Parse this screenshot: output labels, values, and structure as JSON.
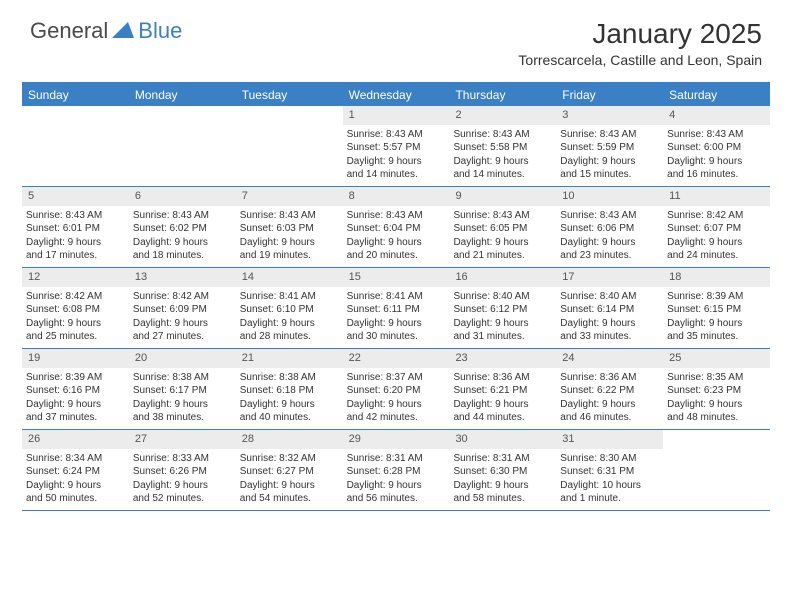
{
  "brand": {
    "text1": "General",
    "text2": "Blue"
  },
  "title": "January 2025",
  "location": "Torrescarcela, Castille and Leon, Spain",
  "colors": {
    "accent": "#3b7fc4",
    "dayhead_text": "#ffffff",
    "daynum_bg": "#ececec",
    "daynum_text": "#555555",
    "body_text": "#333333",
    "background": "#ffffff"
  },
  "day_headers": [
    "Sunday",
    "Monday",
    "Tuesday",
    "Wednesday",
    "Thursday",
    "Friday",
    "Saturday"
  ],
  "weeks": [
    [
      {
        "empty": true
      },
      {
        "empty": true
      },
      {
        "empty": true
      },
      {
        "day": "1",
        "sunrise": "Sunrise: 8:43 AM",
        "sunset": "Sunset: 5:57 PM",
        "dl1": "Daylight: 9 hours",
        "dl2": "and 14 minutes."
      },
      {
        "day": "2",
        "sunrise": "Sunrise: 8:43 AM",
        "sunset": "Sunset: 5:58 PM",
        "dl1": "Daylight: 9 hours",
        "dl2": "and 14 minutes."
      },
      {
        "day": "3",
        "sunrise": "Sunrise: 8:43 AM",
        "sunset": "Sunset: 5:59 PM",
        "dl1": "Daylight: 9 hours",
        "dl2": "and 15 minutes."
      },
      {
        "day": "4",
        "sunrise": "Sunrise: 8:43 AM",
        "sunset": "Sunset: 6:00 PM",
        "dl1": "Daylight: 9 hours",
        "dl2": "and 16 minutes."
      }
    ],
    [
      {
        "day": "5",
        "sunrise": "Sunrise: 8:43 AM",
        "sunset": "Sunset: 6:01 PM",
        "dl1": "Daylight: 9 hours",
        "dl2": "and 17 minutes."
      },
      {
        "day": "6",
        "sunrise": "Sunrise: 8:43 AM",
        "sunset": "Sunset: 6:02 PM",
        "dl1": "Daylight: 9 hours",
        "dl2": "and 18 minutes."
      },
      {
        "day": "7",
        "sunrise": "Sunrise: 8:43 AM",
        "sunset": "Sunset: 6:03 PM",
        "dl1": "Daylight: 9 hours",
        "dl2": "and 19 minutes."
      },
      {
        "day": "8",
        "sunrise": "Sunrise: 8:43 AM",
        "sunset": "Sunset: 6:04 PM",
        "dl1": "Daylight: 9 hours",
        "dl2": "and 20 minutes."
      },
      {
        "day": "9",
        "sunrise": "Sunrise: 8:43 AM",
        "sunset": "Sunset: 6:05 PM",
        "dl1": "Daylight: 9 hours",
        "dl2": "and 21 minutes."
      },
      {
        "day": "10",
        "sunrise": "Sunrise: 8:43 AM",
        "sunset": "Sunset: 6:06 PM",
        "dl1": "Daylight: 9 hours",
        "dl2": "and 23 minutes."
      },
      {
        "day": "11",
        "sunrise": "Sunrise: 8:42 AM",
        "sunset": "Sunset: 6:07 PM",
        "dl1": "Daylight: 9 hours",
        "dl2": "and 24 minutes."
      }
    ],
    [
      {
        "day": "12",
        "sunrise": "Sunrise: 8:42 AM",
        "sunset": "Sunset: 6:08 PM",
        "dl1": "Daylight: 9 hours",
        "dl2": "and 25 minutes."
      },
      {
        "day": "13",
        "sunrise": "Sunrise: 8:42 AM",
        "sunset": "Sunset: 6:09 PM",
        "dl1": "Daylight: 9 hours",
        "dl2": "and 27 minutes."
      },
      {
        "day": "14",
        "sunrise": "Sunrise: 8:41 AM",
        "sunset": "Sunset: 6:10 PM",
        "dl1": "Daylight: 9 hours",
        "dl2": "and 28 minutes."
      },
      {
        "day": "15",
        "sunrise": "Sunrise: 8:41 AM",
        "sunset": "Sunset: 6:11 PM",
        "dl1": "Daylight: 9 hours",
        "dl2": "and 30 minutes."
      },
      {
        "day": "16",
        "sunrise": "Sunrise: 8:40 AM",
        "sunset": "Sunset: 6:12 PM",
        "dl1": "Daylight: 9 hours",
        "dl2": "and 31 minutes."
      },
      {
        "day": "17",
        "sunrise": "Sunrise: 8:40 AM",
        "sunset": "Sunset: 6:14 PM",
        "dl1": "Daylight: 9 hours",
        "dl2": "and 33 minutes."
      },
      {
        "day": "18",
        "sunrise": "Sunrise: 8:39 AM",
        "sunset": "Sunset: 6:15 PM",
        "dl1": "Daylight: 9 hours",
        "dl2": "and 35 minutes."
      }
    ],
    [
      {
        "day": "19",
        "sunrise": "Sunrise: 8:39 AM",
        "sunset": "Sunset: 6:16 PM",
        "dl1": "Daylight: 9 hours",
        "dl2": "and 37 minutes."
      },
      {
        "day": "20",
        "sunrise": "Sunrise: 8:38 AM",
        "sunset": "Sunset: 6:17 PM",
        "dl1": "Daylight: 9 hours",
        "dl2": "and 38 minutes."
      },
      {
        "day": "21",
        "sunrise": "Sunrise: 8:38 AM",
        "sunset": "Sunset: 6:18 PM",
        "dl1": "Daylight: 9 hours",
        "dl2": "and 40 minutes."
      },
      {
        "day": "22",
        "sunrise": "Sunrise: 8:37 AM",
        "sunset": "Sunset: 6:20 PM",
        "dl1": "Daylight: 9 hours",
        "dl2": "and 42 minutes."
      },
      {
        "day": "23",
        "sunrise": "Sunrise: 8:36 AM",
        "sunset": "Sunset: 6:21 PM",
        "dl1": "Daylight: 9 hours",
        "dl2": "and 44 minutes."
      },
      {
        "day": "24",
        "sunrise": "Sunrise: 8:36 AM",
        "sunset": "Sunset: 6:22 PM",
        "dl1": "Daylight: 9 hours",
        "dl2": "and 46 minutes."
      },
      {
        "day": "25",
        "sunrise": "Sunrise: 8:35 AM",
        "sunset": "Sunset: 6:23 PM",
        "dl1": "Daylight: 9 hours",
        "dl2": "and 48 minutes."
      }
    ],
    [
      {
        "day": "26",
        "sunrise": "Sunrise: 8:34 AM",
        "sunset": "Sunset: 6:24 PM",
        "dl1": "Daylight: 9 hours",
        "dl2": "and 50 minutes."
      },
      {
        "day": "27",
        "sunrise": "Sunrise: 8:33 AM",
        "sunset": "Sunset: 6:26 PM",
        "dl1": "Daylight: 9 hours",
        "dl2": "and 52 minutes."
      },
      {
        "day": "28",
        "sunrise": "Sunrise: 8:32 AM",
        "sunset": "Sunset: 6:27 PM",
        "dl1": "Daylight: 9 hours",
        "dl2": "and 54 minutes."
      },
      {
        "day": "29",
        "sunrise": "Sunrise: 8:31 AM",
        "sunset": "Sunset: 6:28 PM",
        "dl1": "Daylight: 9 hours",
        "dl2": "and 56 minutes."
      },
      {
        "day": "30",
        "sunrise": "Sunrise: 8:31 AM",
        "sunset": "Sunset: 6:30 PM",
        "dl1": "Daylight: 9 hours",
        "dl2": "and 58 minutes."
      },
      {
        "day": "31",
        "sunrise": "Sunrise: 8:30 AM",
        "sunset": "Sunset: 6:31 PM",
        "dl1": "Daylight: 10 hours",
        "dl2": "and 1 minute."
      },
      {
        "empty": true
      }
    ]
  ]
}
